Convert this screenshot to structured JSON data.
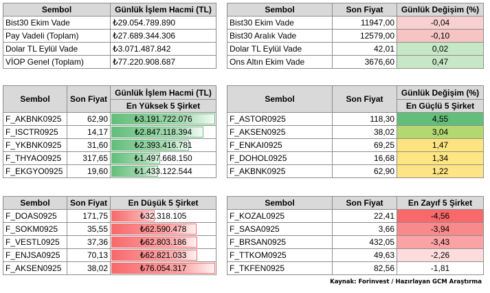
{
  "t1": {
    "headers": [
      "Sembol",
      "Günlük İşlem Hacmi (TL)"
    ],
    "rows": [
      {
        "sym": "Bist30 Ekim Vade",
        "val": "₺29.054.789.890"
      },
      {
        "sym": "Pay Vadeli (Toplam)",
        "val": "₺27.689.344.306"
      },
      {
        "sym": "Dolar TL Eylül Vade",
        "val": "₺3.071.487.842"
      },
      {
        "sym": "VİOP Genel (Toplam)",
        "val": "₺77.220.908.687"
      }
    ]
  },
  "t2": {
    "headers": [
      "Sembol",
      "Son Fiyat",
      "Günlük Değişim (%)"
    ],
    "rows": [
      {
        "sym": "Bist30 Ekim Vade",
        "price": "11947,00",
        "chg": "-0,04",
        "color": "#f8d0d0"
      },
      {
        "sym": "Bist30 Aralık Vade",
        "price": "12579,00",
        "chg": "-0,10",
        "color": "#f7c4c4"
      },
      {
        "sym": "Dolar TL Eylül Vade",
        "price": "42,01",
        "chg": "0,02",
        "color": "#c6e8c6"
      },
      {
        "sym": "Ons Altın Ekim Vade",
        "price": "3676,60",
        "chg": "0,47",
        "color": "#c6e8c6"
      }
    ]
  },
  "t3": {
    "headers": [
      "Sembol",
      "Son Fiyat",
      "Günlük İşlem Hacmi (TL)"
    ],
    "sub": "En Yüksek 5 Şirket",
    "rows": [
      {
        "sym": "F_AKBNK0925",
        "price": "62,90",
        "val": "₺3.191.722.076",
        "fill": 1.0
      },
      {
        "sym": "F_ISCTR0925",
        "price": "14,17",
        "val": "₺2.847.118.394",
        "fill": 0.89
      },
      {
        "sym": "F_YKBNK0925",
        "price": "31,60",
        "val": "₺2.393.416.781",
        "fill": 0.75
      },
      {
        "sym": "F_THYAO0925",
        "price": "317,65",
        "val": "₺1.497.668.150",
        "fill": 0.47
      },
      {
        "sym": "F_EKGYO0925",
        "price": "19,60",
        "val": "₺1.433.122.544",
        "fill": 0.45
      }
    ]
  },
  "t4": {
    "headers": [
      "Sembol",
      "Son Fiyat",
      "Günlük Değişim (%)"
    ],
    "sub": "En Güçlü 5 Şirket",
    "rows": [
      {
        "sym": "F_ASTOR0925",
        "price": "118,30",
        "chg": "4,55",
        "color": "#63be7b"
      },
      {
        "sym": "F_AKSEN0925",
        "price": "38,02",
        "chg": "3,04",
        "color": "#b3d872"
      },
      {
        "sym": "F_ENKAI0925",
        "price": "69,25",
        "chg": "1,47",
        "color": "#fde480"
      },
      {
        "sym": "F_DOHOL0925",
        "price": "16,68",
        "chg": "1,34",
        "color": "#fde583"
      },
      {
        "sym": "F_AKBNK0925",
        "price": "62,90",
        "chg": "1,22",
        "color": "#fee485"
      }
    ]
  },
  "t5": {
    "headers": [
      "Sembol",
      "Son Fiyat",
      "En Düşük 5 Şirket"
    ],
    "rows": [
      {
        "sym": "F_DOAS0925",
        "price": "171,75",
        "val": "₺32.318.105",
        "fill": 0.42
      },
      {
        "sym": "F_SOKM0925",
        "price": "35,55",
        "val": "₺62.590.478",
        "fill": 0.82
      },
      {
        "sym": "F_VESTL0925",
        "price": "37,36",
        "val": "₺62.803.186",
        "fill": 0.83
      },
      {
        "sym": "F_ENJSA0925",
        "price": "70,13",
        "val": "₺62.821.033",
        "fill": 0.83
      },
      {
        "sym": "F_AKSEN0925",
        "price": "38,02",
        "val": "₺76.054.317",
        "fill": 1.0
      }
    ]
  },
  "t6": {
    "headers": [
      "Sembol",
      "Son Fiyat",
      "En Zayıf 5 Şirket"
    ],
    "rows": [
      {
        "sym": "F_KOZAL0925",
        "price": "22,41",
        "chg": "-4,56",
        "color": "#f8696b"
      },
      {
        "sym": "F_SASA0925",
        "price": "3,66",
        "chg": "-3,94",
        "color": "#f98a8c"
      },
      {
        "sym": "F_BRSAN0925",
        "price": "432,05",
        "chg": "-3,43",
        "color": "#faa3a4"
      },
      {
        "sym": "F_TTKOM0925",
        "price": "49,63",
        "chg": "-2,26",
        "color": "#fcdcdc"
      },
      {
        "sym": "F_TKFEN0925",
        "price": "82,56",
        "chg": "-1,81",
        "color": "#ffffff"
      }
    ]
  },
  "source": "Kaynak: Forinvest / Hazırlayan GCM Araştırma"
}
